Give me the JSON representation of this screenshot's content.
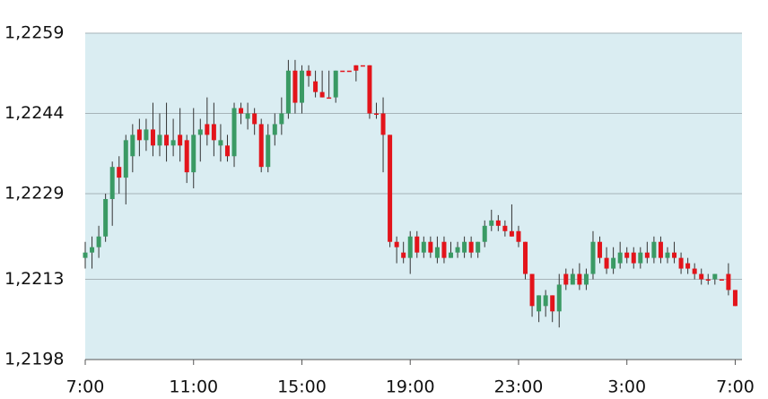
{
  "chart_data": {
    "type": "candlestick",
    "up_color": "#3a9a64",
    "down_color": "#e3141b",
    "wick_color": "#333333",
    "background": "#daedf2",
    "grid": true,
    "grid_color": "#a6b3b8",
    "xlim": [
      0,
      24.25
    ],
    "ylim": [
      1.2198,
      1.2259
    ],
    "xticks": [
      {
        "value": 0,
        "label": "7:00"
      },
      {
        "value": 4,
        "label": "11:00"
      },
      {
        "value": 8,
        "label": "15:00"
      },
      {
        "value": 12,
        "label": "19:00"
      },
      {
        "value": 16,
        "label": "23:00"
      },
      {
        "value": 20,
        "label": "3:00"
      },
      {
        "value": 24,
        "label": "7:00"
      }
    ],
    "yticks": [
      {
        "value": 1.2259,
        "label": "1,2259"
      },
      {
        "value": 1.2244,
        "label": "1,2244"
      },
      {
        "value": 1.2229,
        "label": "1,2229"
      },
      {
        "value": 1.2213,
        "label": "1,2213"
      },
      {
        "value": 1.2198,
        "label": "1,2198"
      }
    ],
    "x": [
      0,
      0.25,
      0.5,
      0.75,
      1,
      1.25,
      1.5,
      1.75,
      2,
      2.25,
      2.5,
      2.75,
      3,
      3.25,
      3.5,
      3.75,
      4,
      4.25,
      4.5,
      4.75,
      5,
      5.25,
      5.5,
      5.75,
      6,
      6.25,
      6.5,
      6.75,
      7,
      7.25,
      7.5,
      7.75,
      8,
      8.25,
      8.5,
      8.75,
      9,
      9.25,
      9.5,
      9.75,
      10,
      10.25,
      10.5,
      10.75,
      11,
      11.25,
      11.5,
      11.75,
      12,
      12.25,
      12.5,
      12.75,
      13,
      13.25,
      13.5,
      13.75,
      14,
      14.25,
      14.5,
      14.75,
      15,
      15.25,
      15.5,
      15.75,
      16,
      16.25,
      16.5,
      16.75,
      17,
      17.25,
      17.5,
      17.75,
      18,
      18.25,
      18.5,
      18.75,
      19,
      19.25,
      19.5,
      19.75,
      20,
      20.25,
      20.5,
      20.75,
      21,
      21.25,
      21.5,
      21.75,
      22,
      22.25,
      22.5,
      22.75,
      23,
      23.25,
      23.5,
      23.75,
      24
    ],
    "open": [
      1.2217,
      1.2218,
      1.2219,
      1.2221,
      1.2228,
      1.2234,
      1.2232,
      1.2236,
      1.2241,
      1.2239,
      1.2241,
      1.2238,
      1.224,
      1.2238,
      1.224,
      1.2239,
      1.2233,
      1.224,
      1.2242,
      1.2242,
      1.2238,
      1.2238,
      1.2236,
      1.2245,
      1.2243,
      1.2244,
      1.2242,
      1.2234,
      1.224,
      1.2242,
      1.2244,
      1.2252,
      1.2246,
      1.2252,
      1.225,
      1.2248,
      1.2247,
      1.2247,
      1.2252,
      1.2252,
      1.2253,
      1.2253,
      1.2253,
      1.2244,
      1.2244,
      1.224,
      1.222,
      1.2218,
      1.2217,
      1.2221,
      1.2218,
      1.222,
      1.2217,
      1.222,
      1.2217,
      1.2218,
      1.2218,
      1.222,
      1.2218,
      1.222,
      1.2223,
      1.2224,
      1.2223,
      1.2222,
      1.2222,
      1.222,
      1.2214,
      1.2207,
      1.2208,
      1.221,
      1.2207,
      1.2214,
      1.2212,
      1.2214,
      1.2212,
      1.2214,
      1.222,
      1.2217,
      1.2215,
      1.2216,
      1.2218,
      1.2218,
      1.2216,
      1.2218,
      1.2217,
      1.222,
      1.2217,
      1.2218,
      1.2217,
      1.2216,
      1.2215,
      1.2214,
      1.2213,
      1.2213,
      1.2213,
      1.2214,
      1.2211
    ],
    "high": [
      1.222,
      1.2221,
      1.2223,
      1.2229,
      1.2235,
      1.2236,
      1.224,
      1.2242,
      1.2243,
      1.2243,
      1.2246,
      1.2244,
      1.2246,
      1.2243,
      1.2245,
      1.224,
      1.2245,
      1.2243,
      1.2247,
      1.2246,
      1.2242,
      1.224,
      1.2246,
      1.2246,
      1.2246,
      1.2245,
      1.2243,
      1.2242,
      1.2244,
      1.2247,
      1.2254,
      1.2254,
      1.2253,
      1.2253,
      1.2252,
      1.2252,
      1.2252,
      1.2252,
      1.2252,
      1.2252,
      1.2253,
      1.2253,
      1.2253,
      1.2246,
      1.2247,
      1.224,
      1.2221,
      1.222,
      1.2222,
      1.2222,
      1.2221,
      1.2221,
      1.2221,
      1.2221,
      1.222,
      1.222,
      1.2221,
      1.2221,
      1.222,
      1.2224,
      1.2226,
      1.2225,
      1.2224,
      1.2227,
      1.2223,
      1.222,
      1.2214,
      1.221,
      1.2211,
      1.221,
      1.2214,
      1.2215,
      1.2215,
      1.2216,
      1.2215,
      1.2222,
      1.2221,
      1.2219,
      1.2219,
      1.222,
      1.2219,
      1.2219,
      1.2219,
      1.222,
      1.2221,
      1.2221,
      1.2219,
      1.222,
      1.2218,
      1.2217,
      1.2216,
      1.2215,
      1.2214,
      1.2214,
      1.2213,
      1.2216,
      1.2211
    ],
    "low": [
      1.2215,
      1.2215,
      1.2217,
      1.222,
      1.2223,
      1.2229,
      1.2227,
      1.2233,
      1.2236,
      1.2237,
      1.2236,
      1.2236,
      1.2235,
      1.2236,
      1.2235,
      1.2231,
      1.223,
      1.2235,
      1.2238,
      1.2236,
      1.2235,
      1.2235,
      1.2234,
      1.2242,
      1.2241,
      1.224,
      1.2233,
      1.2233,
      1.2238,
      1.224,
      1.2243,
      1.2244,
      1.2244,
      1.2249,
      1.2247,
      1.2247,
      1.2247,
      1.2246,
      1.2252,
      1.2252,
      1.225,
      1.2253,
      1.2243,
      1.2243,
      1.2233,
      1.2219,
      1.2216,
      1.2216,
      1.2214,
      1.2217,
      1.2217,
      1.2217,
      1.2216,
      1.2216,
      1.2217,
      1.2217,
      1.2217,
      1.2217,
      1.2217,
      1.2219,
      1.2222,
      1.2222,
      1.2221,
      1.2221,
      1.2219,
      1.2213,
      1.2206,
      1.2205,
      1.2206,
      1.2205,
      1.2204,
      1.2211,
      1.2212,
      1.2211,
      1.2211,
      1.2213,
      1.2216,
      1.2214,
      1.2214,
      1.2215,
      1.2216,
      1.2215,
      1.2215,
      1.2216,
      1.2216,
      1.2216,
      1.2216,
      1.2216,
      1.2214,
      1.2214,
      1.2213,
      1.2212,
      1.2212,
      1.2212,
      1.2213,
      1.221,
      1.2208
    ],
    "close": [
      1.2218,
      1.2219,
      1.2221,
      1.2228,
      1.2234,
      1.2232,
      1.2239,
      1.224,
      1.2239,
      1.2241,
      1.2238,
      1.224,
      1.2238,
      1.2239,
      1.2238,
      1.2233,
      1.224,
      1.2241,
      1.224,
      1.2239,
      1.2239,
      1.2236,
      1.2245,
      1.2244,
      1.2244,
      1.2242,
      1.2234,
      1.224,
      1.2242,
      1.2244,
      1.2252,
      1.2246,
      1.2252,
      1.2251,
      1.2248,
      1.2247,
      1.2247,
      1.2252,
      1.2252,
      1.2252,
      1.2252,
      1.2253,
      1.2244,
      1.2244,
      1.224,
      1.222,
      1.2219,
      1.2217,
      1.2221,
      1.2218,
      1.222,
      1.2218,
      1.2219,
      1.2217,
      1.2218,
      1.2219,
      1.222,
      1.2218,
      1.222,
      1.2223,
      1.2224,
      1.2223,
      1.2222,
      1.2221,
      1.222,
      1.2214,
      1.2208,
      1.221,
      1.221,
      1.2207,
      1.2212,
      1.2212,
      1.2214,
      1.2212,
      1.2214,
      1.222,
      1.2217,
      1.2215,
      1.2217,
      1.2218,
      1.2217,
      1.2216,
      1.2218,
      1.2217,
      1.222,
      1.2217,
      1.2218,
      1.2217,
      1.2215,
      1.2215,
      1.2214,
      1.2213,
      1.2213,
      1.2214,
      1.2213,
      1.2211,
      1.2208
    ]
  }
}
